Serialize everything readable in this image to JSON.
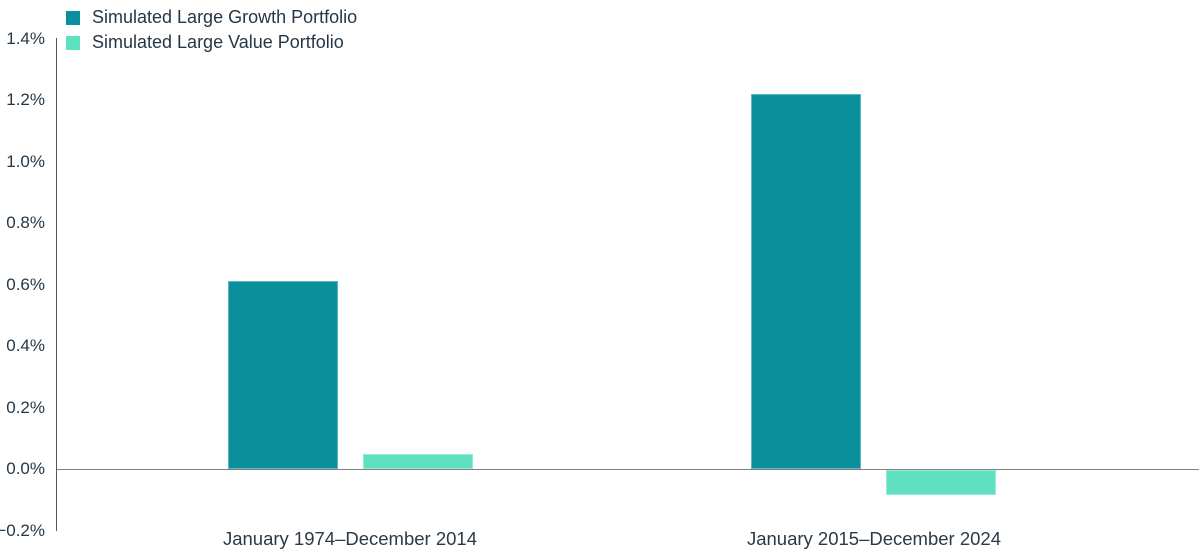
{
  "legend": {
    "items": [
      {
        "label": "Simulated Large Growth Portfolio",
        "color": "#0a909d"
      },
      {
        "label": "Simulated Large Value Portfolio",
        "color": "#5fe0c1"
      }
    ]
  },
  "chart_data": {
    "type": "bar",
    "title": "",
    "unit": "%",
    "categories": [
      "January 1974–December 2014",
      "January 2015–December 2024"
    ],
    "series": [
      {
        "name": "Simulated Large Growth Portfolio",
        "color": "#0a909d",
        "values": [
          0.61,
          1.22
        ]
      },
      {
        "name": "Simulated Large Value Portfolio",
        "color": "#5fe0c1",
        "values": [
          0.05,
          -0.08
        ]
      }
    ],
    "xlabel": "",
    "ylabel": "",
    "ylim": [
      -0.2,
      1.4
    ],
    "ytick_step": 0.2,
    "yticks": [
      {
        "value": 1.4,
        "label": "1.4%"
      },
      {
        "value": 1.2,
        "label": "1.2%"
      },
      {
        "value": 1.0,
        "label": "1.0%"
      },
      {
        "value": 0.8,
        "label": "0.8%"
      },
      {
        "value": 0.6,
        "label": "0.6%"
      },
      {
        "value": 0.4,
        "label": "0.4%"
      },
      {
        "value": 0.2,
        "label": "0.2%"
      },
      {
        "value": 0.0,
        "label": "0.0%"
      },
      {
        "value": -0.2,
        "label": "−0.2%"
      }
    ],
    "legend_position": "top-left",
    "grid": false,
    "axis_colors": {
      "axis_line": "#53565a",
      "zero_line": "#808080",
      "label_text": "#253746"
    }
  }
}
